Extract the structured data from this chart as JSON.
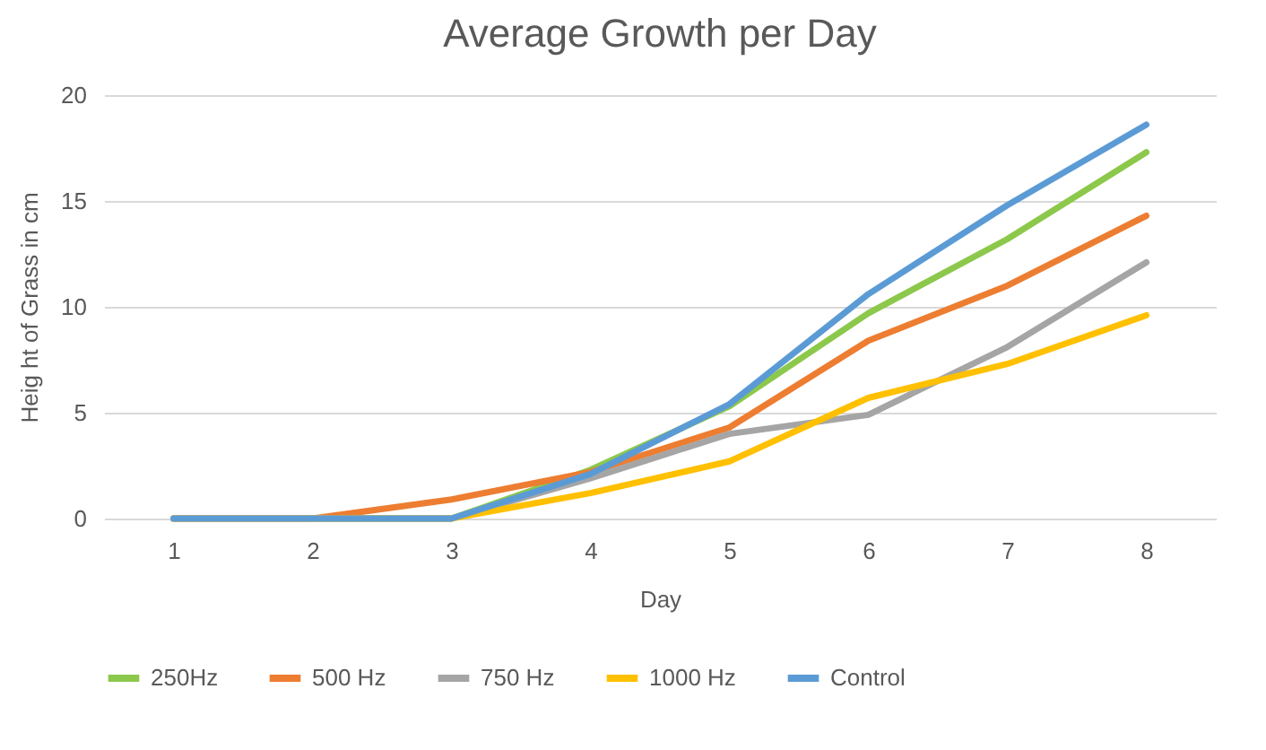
{
  "chart_data": {
    "type": "line",
    "title": "Average Growth per Day",
    "xlabel": "Day",
    "ylabel": "Heig ht of Grass in cm",
    "categories": [
      "1",
      "2",
      "3",
      "4",
      "5",
      "6",
      "7",
      "8"
    ],
    "series": [
      {
        "name": "250Hz",
        "color": "#8cc84b",
        "values": [
          0,
          0,
          0,
          2.3,
          5.3,
          9.7,
          13.2,
          17.3
        ]
      },
      {
        "name": "500 Hz",
        "color": "#ed7d31",
        "values": [
          0,
          0,
          0.9,
          2.2,
          4.3,
          8.4,
          11.0,
          14.3
        ]
      },
      {
        "name": "750 Hz",
        "color": "#a5a5a5",
        "values": [
          0,
          0,
          0,
          1.9,
          4.0,
          4.9,
          8.1,
          12.1
        ]
      },
      {
        "name": "1000 Hz",
        "color": "#ffc000",
        "values": [
          0,
          0,
          0,
          1.2,
          2.7,
          5.7,
          7.3,
          9.6
        ]
      },
      {
        "name": "Control",
        "color": "#5b9bd5",
        "values": [
          0,
          0,
          0,
          2.1,
          5.4,
          10.6,
          14.8,
          18.6
        ]
      }
    ],
    "ylim": [
      0,
      20
    ],
    "yticks": [
      0,
      5,
      10,
      15,
      20
    ],
    "grid": "y",
    "legend": "bottom",
    "marker": "none",
    "line_style": "solid"
  }
}
